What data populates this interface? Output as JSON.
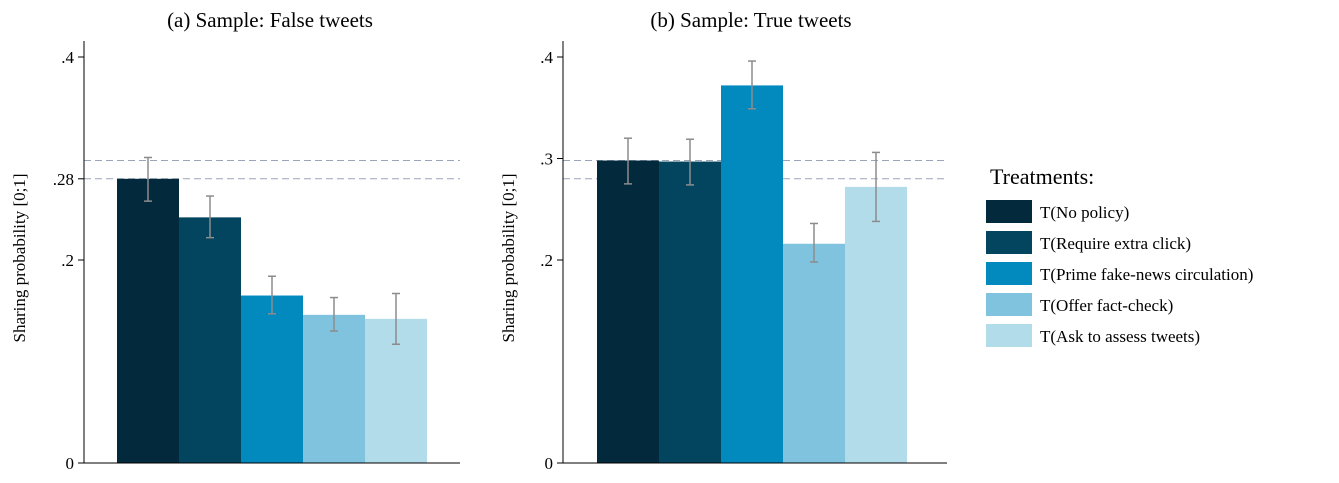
{
  "chart_data": [
    {
      "type": "bar",
      "title": "(a) Sample: False tweets",
      "ylabel": "Sharing probability [0;1]",
      "ylim": [
        0,
        0.4
      ],
      "yticks": [
        {
          "value": 0,
          "label": "0"
        },
        {
          "value": 0.2,
          "label": ".2"
        },
        {
          "value": 0.28,
          "label": ".28"
        },
        {
          "value": 0.4,
          "label": ".4"
        }
      ],
      "reference_lines": [
        0.28,
        0.298
      ],
      "series": [
        {
          "name": "T(No policy)",
          "value": 0.28,
          "ci": [
            0.258,
            0.301
          ]
        },
        {
          "name": "T(Require extra click)",
          "value": 0.242,
          "ci": [
            0.222,
            0.263
          ]
        },
        {
          "name": "T(Prime fake-news circulation)",
          "value": 0.165,
          "ci": [
            0.147,
            0.184
          ]
        },
        {
          "name": "T(Offer fact-check)",
          "value": 0.146,
          "ci": [
            0.13,
            0.163
          ]
        },
        {
          "name": "T(Ask to assess tweets)",
          "value": 0.142,
          "ci": [
            0.117,
            0.167
          ]
        }
      ]
    },
    {
      "type": "bar",
      "title": "(b) Sample: True tweets",
      "ylabel": "Sharing probability [0;1]",
      "ylim": [
        0,
        0.4
      ],
      "yticks": [
        {
          "value": 0,
          "label": "0"
        },
        {
          "value": 0.2,
          "label": ".2"
        },
        {
          "value": 0.3,
          "label": ".3"
        },
        {
          "value": 0.4,
          "label": ".4"
        }
      ],
      "reference_lines": [
        0.28,
        0.298
      ],
      "series": [
        {
          "name": "T(No policy)",
          "value": 0.298,
          "ci": [
            0.275,
            0.32
          ]
        },
        {
          "name": "T(Require extra click)",
          "value": 0.297,
          "ci": [
            0.274,
            0.319
          ]
        },
        {
          "name": "T(Prime fake-news circulation)",
          "value": 0.372,
          "ci": [
            0.349,
            0.396
          ]
        },
        {
          "name": "T(Offer fact-check)",
          "value": 0.216,
          "ci": [
            0.198,
            0.236
          ]
        },
        {
          "name": "T(Ask to assess tweets)",
          "value": 0.272,
          "ci": [
            0.238,
            0.306
          ]
        }
      ]
    }
  ],
  "legend": {
    "title": "Treatments:",
    "items": [
      {
        "label": "T(No policy)",
        "color": "#022a3c"
      },
      {
        "label": "T(Require extra click)",
        "color": "#03445f"
      },
      {
        "label": "T(Prime fake-news circulation)",
        "color": "#0289bd"
      },
      {
        "label": "T(Offer fact-check)",
        "color": "#80c3df"
      },
      {
        "label": "T(Ask to assess tweets)",
        "color": "#b3dcea"
      }
    ]
  },
  "colors": {
    "error_bar": "#8c8c8c",
    "reference_line": "#9aa6b8",
    "axis": "#000000"
  }
}
